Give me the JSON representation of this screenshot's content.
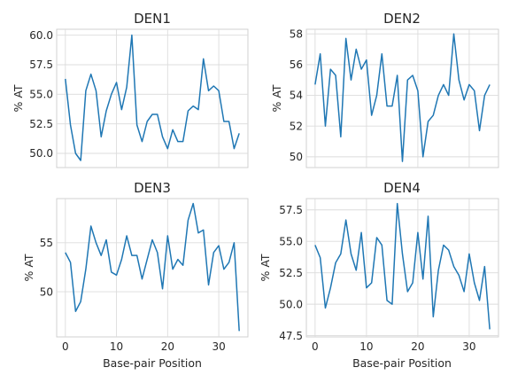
{
  "chart_data": [
    {
      "type": "line",
      "title": "DEN1",
      "xlabel": "",
      "ylabel": "% AT",
      "x": [
        0,
        1,
        2,
        3,
        4,
        5,
        6,
        7,
        8,
        9,
        10,
        11,
        12,
        13,
        14,
        15,
        16,
        17,
        18,
        19,
        20,
        21,
        22,
        23,
        24,
        25,
        26,
        27,
        28,
        29,
        30,
        31,
        32,
        33,
        34
      ],
      "values": [
        56.3,
        52.4,
        50.0,
        49.4,
        55.3,
        56.7,
        55.3,
        51.4,
        53.6,
        55.0,
        56.0,
        53.7,
        55.6,
        60.0,
        52.4,
        51.0,
        52.7,
        53.3,
        53.3,
        51.4,
        50.4,
        52.0,
        51.0,
        51.0,
        53.6,
        54.0,
        53.7,
        58.0,
        55.3,
        55.7,
        55.3,
        52.7,
        52.7,
        50.4,
        51.7
      ],
      "xlim": [
        -1.7,
        35.7
      ],
      "ylim": [
        48.8,
        60.5
      ],
      "xticks": [
        0,
        10,
        20,
        30
      ],
      "yticks": [
        50.0,
        52.5,
        55.0,
        57.5,
        60.0
      ],
      "ytick_labels": [
        "50.0",
        "52.5",
        "55.0",
        "57.5",
        "60.0"
      ],
      "show_xticklabels": false,
      "grid": true
    },
    {
      "type": "line",
      "title": "DEN2",
      "xlabel": "",
      "ylabel": "% AT",
      "x": [
        0,
        1,
        2,
        3,
        4,
        5,
        6,
        7,
        8,
        9,
        10,
        11,
        12,
        13,
        14,
        15,
        16,
        17,
        18,
        19,
        20,
        21,
        22,
        23,
        24,
        25,
        26,
        27,
        28,
        29,
        30,
        31,
        32,
        33,
        34
      ],
      "values": [
        54.7,
        56.7,
        52.0,
        55.7,
        55.3,
        51.3,
        57.7,
        55.0,
        57.0,
        55.7,
        56.3,
        52.7,
        54.0,
        56.7,
        53.3,
        53.3,
        55.3,
        49.7,
        55.0,
        55.3,
        54.3,
        50.0,
        52.3,
        52.7,
        54.0,
        54.7,
        54.0,
        58.0,
        55.0,
        53.7,
        54.7,
        54.3,
        51.7,
        54.0,
        54.7
      ],
      "xlim": [
        -1.7,
        35.7
      ],
      "ylim": [
        49.3,
        58.3
      ],
      "xticks": [
        0,
        10,
        20,
        30
      ],
      "yticks": [
        50,
        52,
        54,
        56,
        58
      ],
      "ytick_labels": [
        "50",
        "52",
        "54",
        "56",
        "58"
      ],
      "show_xticklabels": false,
      "grid": true
    },
    {
      "type": "line",
      "title": "DEN3",
      "xlabel": "Base-pair Position",
      "ylabel": "% AT",
      "x": [
        0,
        1,
        2,
        3,
        4,
        5,
        6,
        7,
        8,
        9,
        10,
        11,
        12,
        13,
        14,
        15,
        16,
        17,
        18,
        19,
        20,
        21,
        22,
        23,
        24,
        25,
        26,
        27,
        28,
        29,
        30,
        31,
        32,
        33,
        34
      ],
      "values": [
        54.0,
        53.0,
        48.0,
        49.0,
        52.3,
        56.7,
        55.0,
        53.7,
        55.3,
        52.0,
        51.7,
        53.3,
        55.7,
        53.7,
        53.7,
        51.3,
        53.3,
        55.3,
        54.0,
        50.3,
        55.7,
        52.3,
        53.3,
        52.7,
        57.3,
        59.0,
        56.0,
        56.3,
        50.7,
        54.0,
        54.7,
        52.3,
        53.0,
        55.0,
        46.0
      ],
      "xlim": [
        -1.7,
        35.7
      ],
      "ylim": [
        45.4,
        59.5
      ],
      "xticks": [
        0,
        10,
        20,
        30
      ],
      "xtick_labels": [
        "0",
        "10",
        "20",
        "30"
      ],
      "yticks": [
        50,
        55
      ],
      "ytick_labels": [
        "50",
        "55"
      ],
      "show_xticklabels": true,
      "grid": true
    },
    {
      "type": "line",
      "title": "DEN4",
      "xlabel": "Base-pair Position",
      "ylabel": "% AT",
      "x": [
        0,
        1,
        2,
        3,
        4,
        5,
        6,
        7,
        8,
        9,
        10,
        11,
        12,
        13,
        14,
        15,
        16,
        17,
        18,
        19,
        20,
        21,
        22,
        23,
        24,
        25,
        26,
        27,
        28,
        29,
        30,
        31,
        32,
        33,
        34
      ],
      "values": [
        54.7,
        53.7,
        49.7,
        51.3,
        53.3,
        54.0,
        56.7,
        54.0,
        52.7,
        55.7,
        51.3,
        51.7,
        55.3,
        54.7,
        50.3,
        50.0,
        58.0,
        54.0,
        51.0,
        51.7,
        55.7,
        52.0,
        57.0,
        49.0,
        52.7,
        54.7,
        54.3,
        53.0,
        52.3,
        51.0,
        54.0,
        51.7,
        50.3,
        53.0,
        48.0
      ],
      "xlim": [
        -1.7,
        35.7
      ],
      "ylim": [
        47.4,
        58.4
      ],
      "xticks": [
        0,
        10,
        20,
        30
      ],
      "xtick_labels": [
        "0",
        "10",
        "20",
        "30"
      ],
      "yticks": [
        47.5,
        50.0,
        52.5,
        55.0,
        57.5
      ],
      "ytick_labels": [
        "47.5",
        "50.0",
        "52.5",
        "55.0",
        "57.5"
      ],
      "show_xticklabels": true,
      "grid": true
    }
  ]
}
